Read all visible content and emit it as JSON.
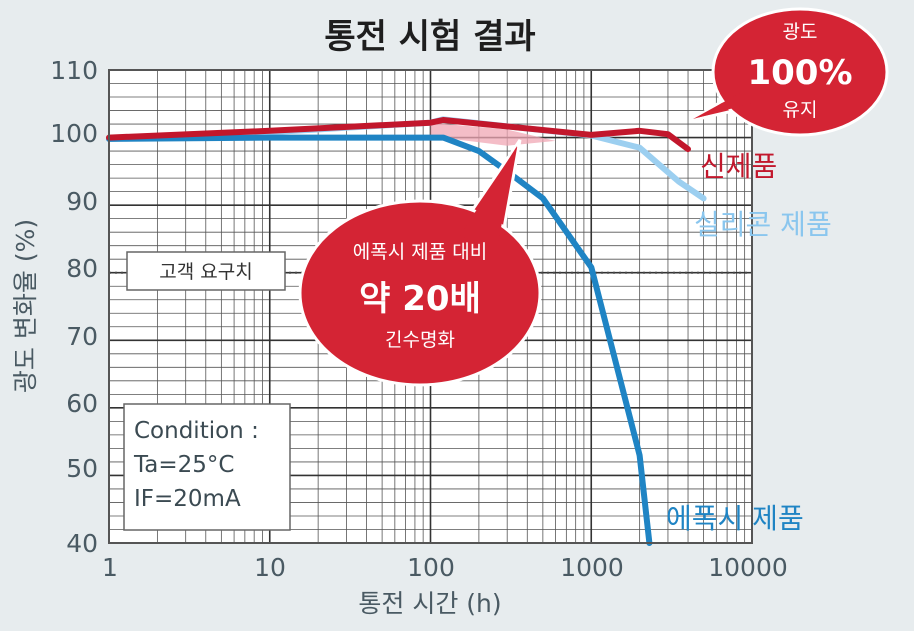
{
  "chart_data": {
    "type": "line",
    "title": "통전 시험 결과",
    "xlabel": "통전 시간 (h)",
    "ylabel": "광도 변화율 (%)",
    "xscale": "log",
    "xlim": [
      1,
      10000
    ],
    "ylim": [
      40,
      110
    ],
    "x_ticks": [
      "1",
      "10",
      "100",
      "1000",
      "10000"
    ],
    "y_ticks": [
      "40",
      "50",
      "60",
      "70",
      "80",
      "90",
      "100",
      "110"
    ],
    "grid": true,
    "series": [
      {
        "name": "실리콘 제품",
        "color": "#9ccff0",
        "points": [
          [
            1,
            99.8
          ],
          [
            10,
            100.8
          ],
          [
            100,
            102.2
          ],
          [
            120,
            102.7
          ],
          [
            1000,
            100.3
          ],
          [
            2000,
            98.5
          ],
          [
            3500,
            93.5
          ],
          [
            5000,
            91.0
          ]
        ]
      },
      {
        "name": "에폭시 제품",
        "color": "#1f84c4",
        "points": [
          [
            1,
            99.8
          ],
          [
            10,
            100
          ],
          [
            100,
            100
          ],
          [
            120,
            100
          ],
          [
            200,
            98
          ],
          [
            300,
            95
          ],
          [
            500,
            91
          ],
          [
            1000,
            80.8
          ],
          [
            2000,
            53
          ],
          [
            2300,
            40
          ]
        ]
      },
      {
        "name": "신제품",
        "color": "#c2172c",
        "points": [
          [
            1,
            100
          ],
          [
            10,
            101
          ],
          [
            100,
            102.2
          ],
          [
            120,
            102.6
          ],
          [
            1000,
            100.4
          ],
          [
            2000,
            101
          ],
          [
            3000,
            100.5
          ],
          [
            4000,
            98.3
          ]
        ]
      }
    ],
    "annotations": {
      "customer_requirement": {
        "label": "고객 요구치",
        "y": 80
      },
      "condition": [
        "Condition :",
        "Ta=25°C",
        "IF=20mA"
      ],
      "callout_new": {
        "line1": "광도",
        "line2": "100%",
        "line3": "유지"
      },
      "callout_epoxy": {
        "line1": "에폭시 제품 대비",
        "line2": "약 20배",
        "line3": "긴수명화"
      }
    }
  },
  "colors": {
    "background": "#e7ecee",
    "plot_background": "#ffffff",
    "bubble_red": "#d42434",
    "shade_pink": "#f0a7b4"
  }
}
